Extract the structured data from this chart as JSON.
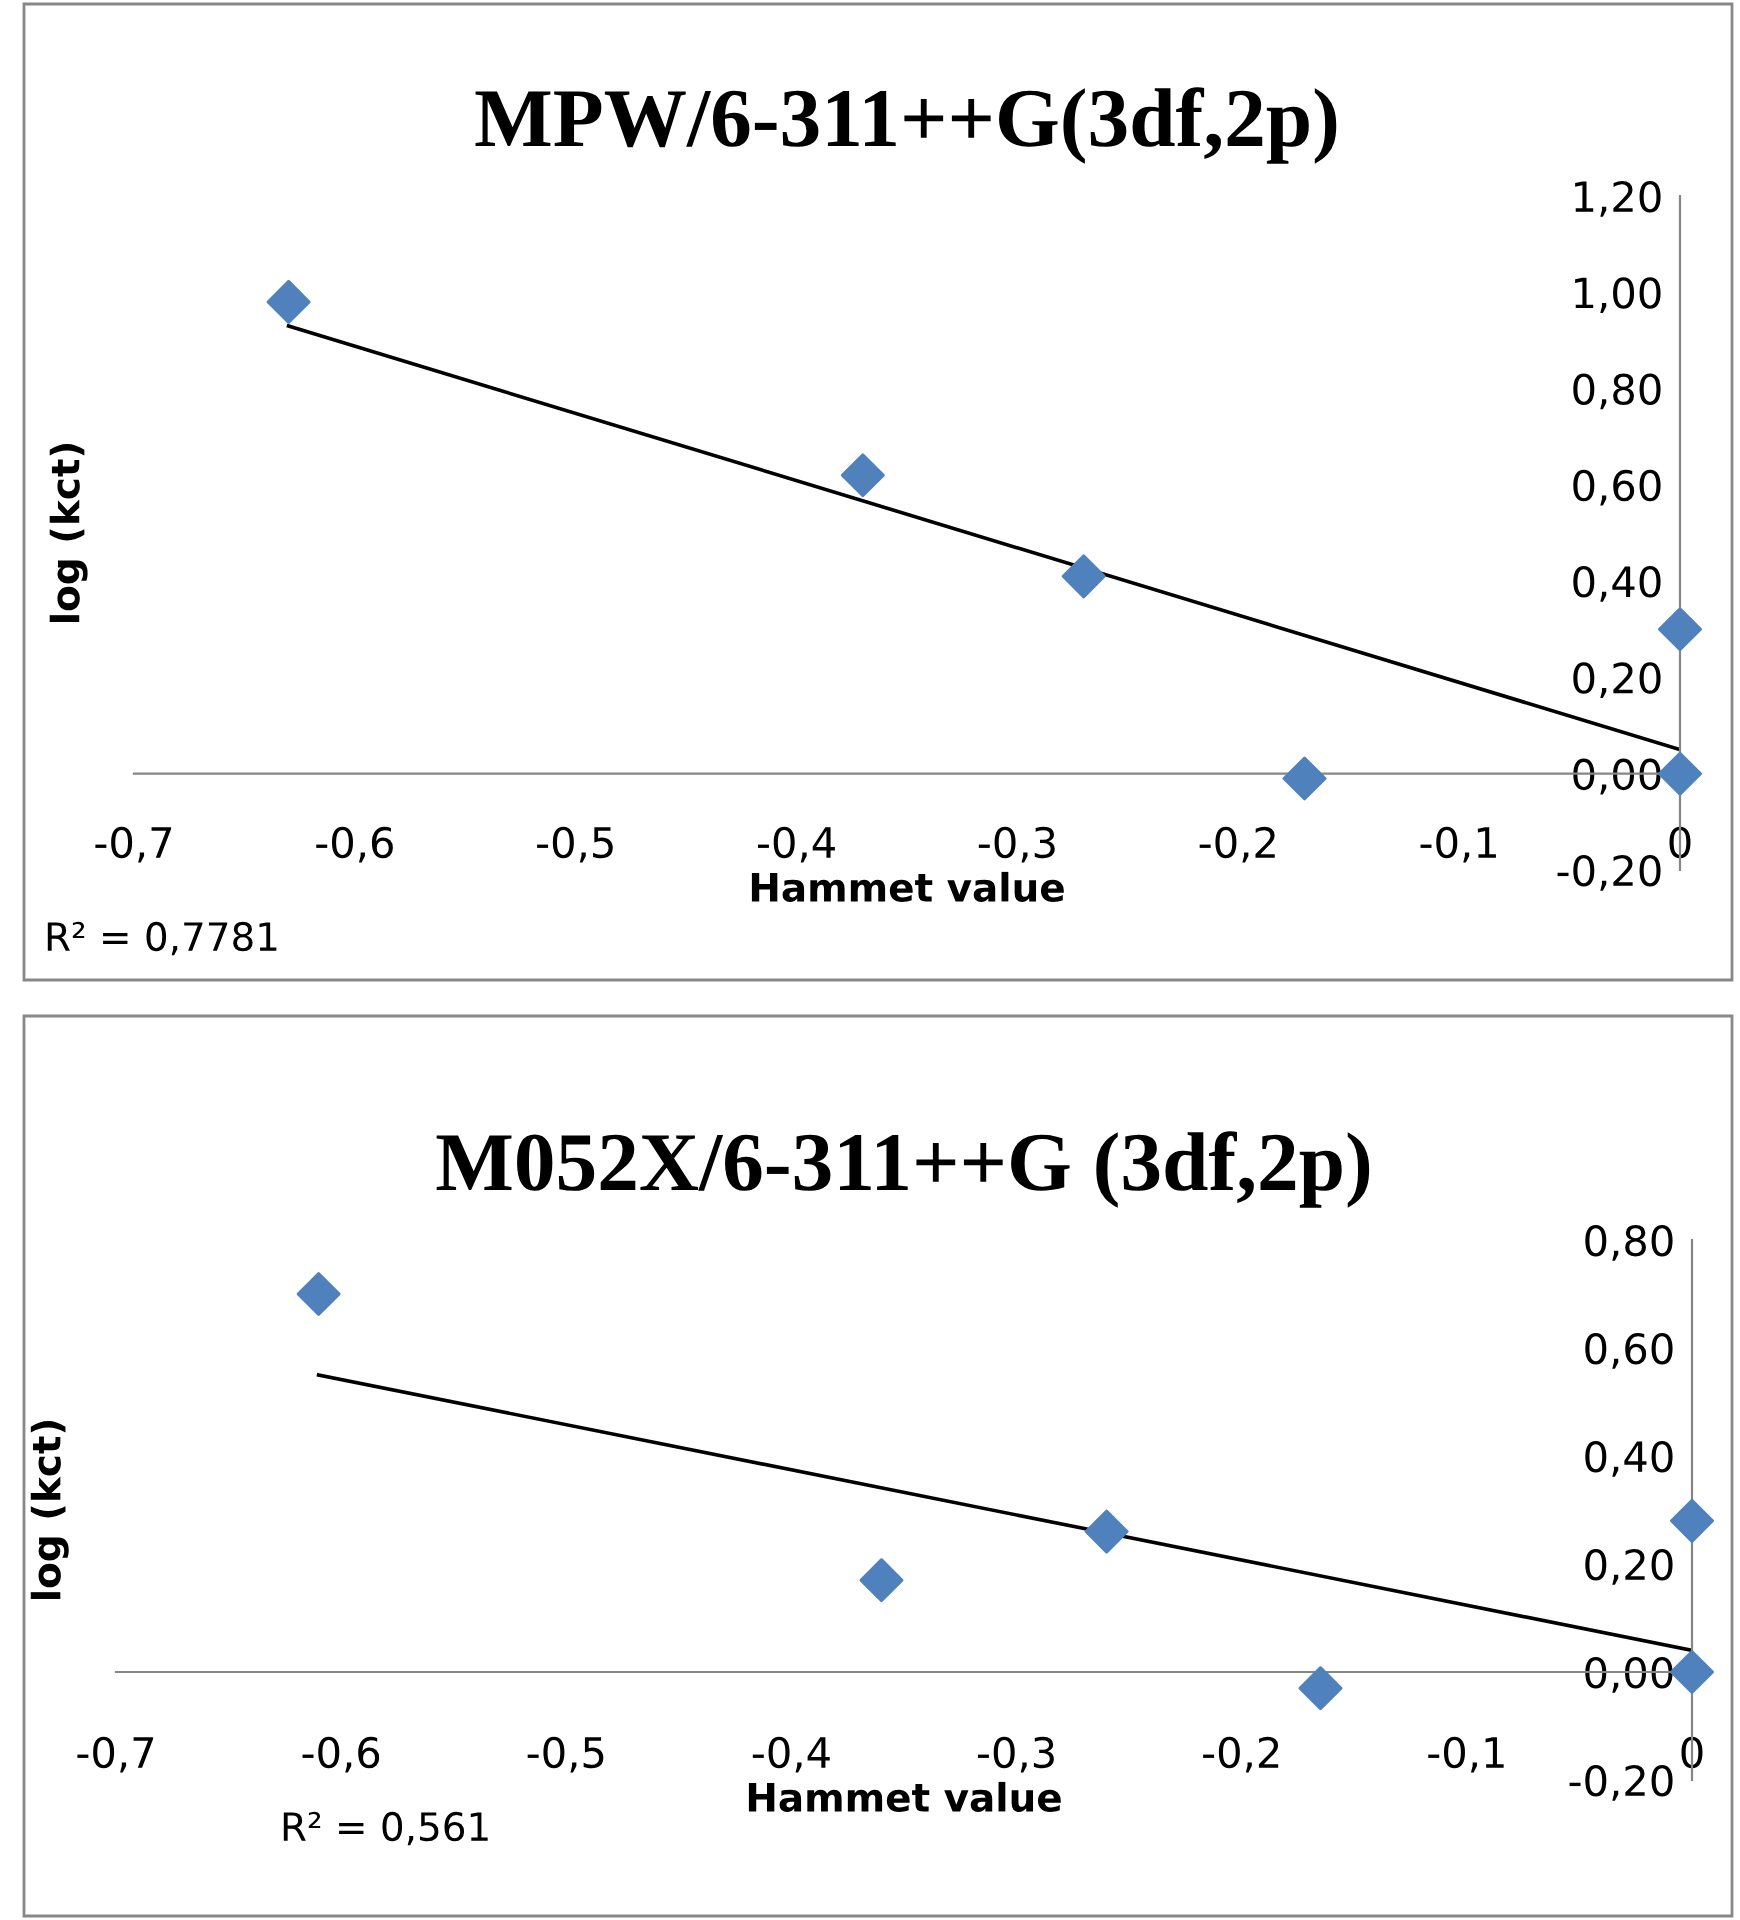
{
  "chart_data": [
    {
      "type": "scatter",
      "title": "MPW/6-311++G(3df,2p)",
      "xlabel": "Hammet value",
      "ylabel": "log (kct)",
      "marker": "diamond",
      "grid": false,
      "legend": false,
      "annotations": [
        "R² = 0,7781"
      ],
      "xlim": [
        -0.7,
        0
      ],
      "ylim": [
        -0.2,
        1.2
      ],
      "xticks": [
        {
          "value": -0.7,
          "label": "-0,7"
        },
        {
          "value": -0.6,
          "label": "-0,6"
        },
        {
          "value": -0.5,
          "label": "-0,5"
        },
        {
          "value": -0.4,
          "label": "-0,4"
        },
        {
          "value": -0.3,
          "label": "-0,3"
        },
        {
          "value": -0.2,
          "label": "-0,2"
        },
        {
          "value": -0.1,
          "label": "-0,1"
        },
        0
      ],
      "yticks": [
        {
          "value": -0.2,
          "label": "-0,20"
        },
        {
          "value": 0,
          "label": "0,00"
        },
        {
          "value": 0.2,
          "label": "0,20"
        },
        {
          "value": 0.4,
          "label": "0,40"
        },
        {
          "value": 0.6,
          "label": "0,60"
        },
        {
          "value": 0.8,
          "label": "0,80"
        },
        {
          "value": 1.0,
          "label": "1,00"
        },
        {
          "value": 1.2,
          "label": "1,20"
        }
      ],
      "series": [
        {
          "type": "scatter",
          "color": "#4f81bd",
          "x": [
            -0.63,
            -0.37,
            -0.27,
            -0.17,
            0,
            0
          ],
          "values": [
            0.98,
            0.62,
            0.41,
            -0.01,
            0.3,
            0.0
          ]
        },
        {
          "type": "line",
          "color": "#000000",
          "marker": "none",
          "x": [
            -0.63,
            0
          ],
          "values": [
            0.93,
            0.05
          ]
        }
      ]
    },
    {
      "type": "scatter",
      "title": "M052X/6-311++G (3df,2p)",
      "xlabel": "Hammet value",
      "ylabel": "log (kct)",
      "marker": "diamond",
      "grid": false,
      "legend": false,
      "annotations": [
        "R² = 0,561"
      ],
      "xlim": [
        -0.7,
        0
      ],
      "ylim": [
        -0.2,
        0.8
      ],
      "xticks": [
        {
          "value": -0.7,
          "label": "-0,7"
        },
        {
          "value": -0.6,
          "label": "-0,6"
        },
        {
          "value": -0.5,
          "label": "-0,5"
        },
        {
          "value": -0.4,
          "label": "-0,4"
        },
        {
          "value": -0.3,
          "label": "-0,3"
        },
        {
          "value": -0.2,
          "label": "-0,2"
        },
        {
          "value": -0.1,
          "label": "-0,1"
        },
        0
      ],
      "yticks": [
        {
          "value": -0.2,
          "label": "-0,20"
        },
        {
          "value": 0,
          "label": "0,00"
        },
        {
          "value": 0.2,
          "label": "0,20"
        },
        {
          "value": 0.4,
          "label": "0,40"
        },
        {
          "value": 0.6,
          "label": "0,60"
        },
        {
          "value": 0.8,
          "label": "0,80"
        }
      ],
      "series": [
        {
          "type": "scatter",
          "color": "#4f81bd",
          "x": [
            -0.61,
            -0.36,
            -0.26,
            -0.165,
            0,
            0
          ],
          "values": [
            0.7,
            0.17,
            0.26,
            -0.03,
            0.28,
            0.0
          ]
        },
        {
          "type": "line",
          "color": "#000000",
          "marker": "none",
          "x": [
            -0.61,
            0
          ],
          "values": [
            0.55,
            0.04
          ]
        }
      ]
    }
  ]
}
